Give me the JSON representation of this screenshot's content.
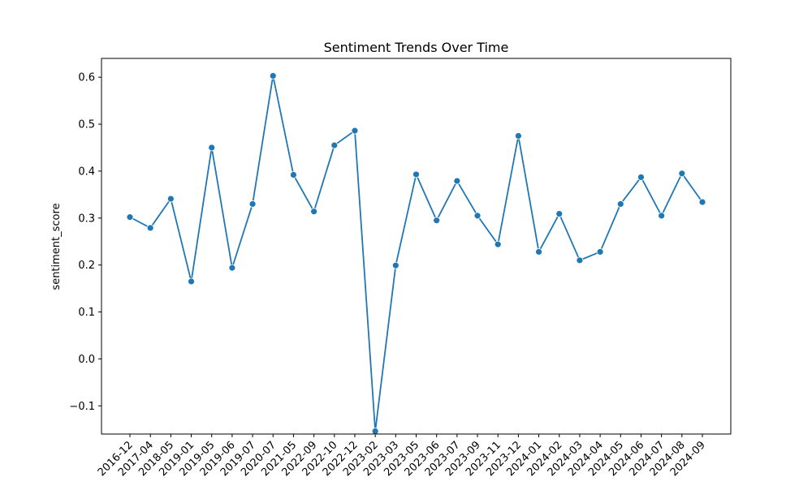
{
  "chart_data": {
    "type": "line",
    "title": "Sentiment Trends Over Time",
    "xlabel": "",
    "ylabel": "sentiment_score",
    "ylim": [
      -0.16,
      0.64
    ],
    "yticks": [
      -0.1,
      0.0,
      0.1,
      0.2,
      0.3,
      0.4,
      0.5,
      0.6
    ],
    "ytick_labels": [
      "−0.1",
      "0.0",
      "0.1",
      "0.2",
      "0.3",
      "0.4",
      "0.5",
      "0.6"
    ],
    "grid": false,
    "categories": [
      "2016-12",
      "2017-04",
      "2018-05",
      "2019-01",
      "2019-05",
      "2019-06",
      "2019-07",
      "2020-07",
      "2021-05",
      "2022-09",
      "2022-10",
      "2022-12",
      "2023-02",
      "2023-03",
      "2023-05",
      "2023-06",
      "2023-07",
      "2023-09",
      "2023-11",
      "2023-12",
      "2024-01",
      "2024-02",
      "2024-03",
      "2024-04",
      "2024-05",
      "2024-06",
      "2024-07",
      "2024-08",
      "2024-09"
    ],
    "series": [
      {
        "values": [
          0.302,
          0.279,
          0.341,
          0.165,
          0.45,
          0.194,
          0.33,
          0.603,
          0.392,
          0.314,
          0.455,
          0.486,
          -0.154,
          0.199,
          0.393,
          0.295,
          0.379,
          0.305,
          0.244,
          0.475,
          0.228,
          0.309,
          0.21,
          0.228,
          0.33,
          0.387,
          0.305,
          0.395,
          0.334
        ],
        "color": "#1f77b4"
      }
    ]
  }
}
